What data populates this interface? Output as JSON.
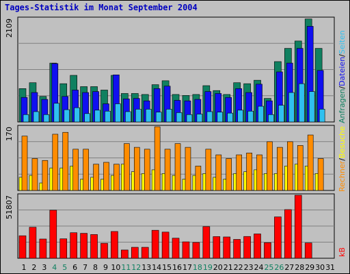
{
  "title": "Tages-Statistik im Monat September 2004",
  "colors": {
    "frame_bg": "#c0c0c0",
    "title": "#0000c0",
    "anfragen": "#108060",
    "dateien": "#1010f0",
    "seiten": "#30c0f0",
    "besuche": "#ffff00",
    "rechner": "#ff8c00",
    "kb": "#ff0000",
    "weekend_day": "#108060",
    "weekday": "#000000"
  },
  "chart_data": [
    {
      "type": "bar",
      "panel": "top",
      "max_label": "2109",
      "ylim": [
        0,
        2109
      ],
      "categories": [
        "1",
        "2",
        "3",
        "4",
        "5",
        "6",
        "7",
        "8",
        "9",
        "10",
        "11",
        "12",
        "13",
        "14",
        "15",
        "16",
        "17",
        "18",
        "19",
        "20",
        "21",
        "22",
        "23",
        "24",
        "25",
        "26",
        "27",
        "28",
        "29",
        "30",
        "31"
      ],
      "weekend_days": [
        "4",
        "5",
        "11",
        "12",
        "18",
        "19",
        "25",
        "26"
      ],
      "legend_segments": [
        {
          "text": "Anfragen",
          "color": "#108060"
        },
        {
          "text": "/",
          "color": "#000000"
        },
        {
          "text": "Dateien",
          "color": "#1010f0"
        },
        {
          "text": "/",
          "color": "#000000"
        },
        {
          "text": "Seiten",
          "color": "#30c0f0"
        }
      ],
      "series": [
        {
          "name": "Anfragen",
          "values": [
            680,
            800,
            520,
            1200,
            780,
            950,
            720,
            720,
            650,
            950,
            580,
            580,
            560,
            760,
            840,
            560,
            540,
            560,
            740,
            640,
            560,
            800,
            780,
            850,
            480,
            1230,
            1500,
            1650,
            2100,
            1500,
            0
          ]
        },
        {
          "name": "Dateien",
          "values": [
            500,
            600,
            460,
            1190,
            520,
            650,
            600,
            620,
            370,
            960,
            470,
            480,
            430,
            680,
            730,
            440,
            430,
            460,
            620,
            580,
            500,
            680,
            600,
            770,
            430,
            1020,
            1200,
            1500,
            1950,
            1050,
            0
          ]
        },
        {
          "name": "Seiten",
          "values": [
            150,
            210,
            150,
            380,
            250,
            290,
            170,
            240,
            220,
            370,
            210,
            260,
            260,
            200,
            260,
            190,
            150,
            160,
            210,
            200,
            180,
            240,
            220,
            320,
            150,
            340,
            600,
            780,
            620,
            260,
            0
          ]
        }
      ]
    },
    {
      "type": "bar",
      "panel": "middle",
      "max_label": "170",
      "ylim": [
        0,
        170
      ],
      "legend_segments": [
        {
          "text": "Rechner",
          "color": "#ff8c00"
        },
        {
          "text": "/",
          "color": "#000000"
        },
        {
          "text": "Besuche",
          "color": "#ffff00"
        }
      ],
      "series": [
        {
          "name": "Rechner",
          "values": [
            145,
            85,
            80,
            150,
            155,
            110,
            110,
            70,
            75,
            70,
            125,
            115,
            110,
            170,
            110,
            125,
            115,
            65,
            110,
            95,
            85,
            95,
            100,
            95,
            130,
            115,
            130,
            120,
            148,
            85,
            0
          ]
        },
        {
          "name": "Besuche",
          "values": [
            35,
            40,
            20,
            60,
            60,
            65,
            30,
            35,
            30,
            40,
            70,
            50,
            45,
            55,
            45,
            40,
            30,
            40,
            45,
            35,
            30,
            45,
            50,
            55,
            45,
            45,
            65,
            70,
            65,
            45,
            0
          ]
        }
      ]
    },
    {
      "type": "bar",
      "panel": "bottom",
      "max_label": "51807",
      "ylim": [
        0,
        51807
      ],
      "legend_segments": [
        {
          "text": "kB",
          "color": "#ff0000"
        }
      ],
      "series": [
        {
          "name": "kB",
          "values": [
            18500,
            25500,
            15800,
            39500,
            16000,
            21000,
            20500,
            19500,
            12300,
            22000,
            6800,
            9000,
            9000,
            23000,
            21500,
            16500,
            13500,
            13000,
            26000,
            17800,
            17500,
            15500,
            17900,
            20000,
            12800,
            34000,
            40000,
            51807,
            12600,
            0,
            0
          ]
        }
      ]
    }
  ]
}
